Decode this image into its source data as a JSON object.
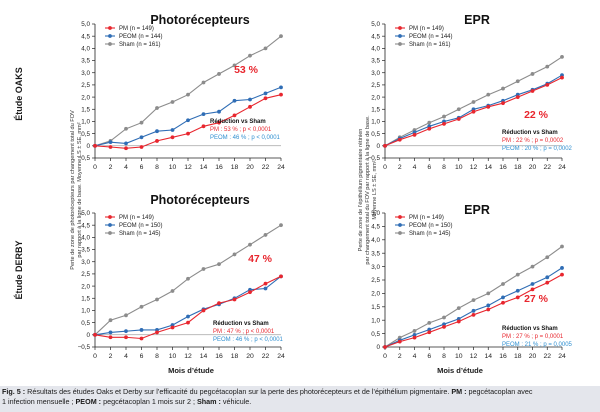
{
  "colors": {
    "PM": "#e8262e",
    "PEOM": "#2f6db5",
    "Sham": "#8c8c8c",
    "pct_red": "#e8262e",
    "pct_blue": "#2f8fd0",
    "caption_bg": "#e4e6ec"
  },
  "row_labels": {
    "oaks": "Étude OAKS",
    "derby": "Étude DERBY"
  },
  "left_ylabel": [
    "Perte de zone de photorécepteurs par changement total du FOV",
    "par rapport à la ligne de base. Moyenne LS ± SE, mm²"
  ],
  "right_ylabel": [
    "Perte de zone de l’épithélium pigmentaire rétinien",
    "par changement total du FOV par rapport à la ligne de base.",
    "Moyenne LS ± SE, mm²"
  ],
  "xlabel": "Mois d’étude",
  "caption": {
    "fig": "Fig. 5 :",
    "text1": " Résultats des études Oaks et Derby sur l’efficacité du pegcétacoplan sur la perte des photorécepteurs et de l’épithélium pigmentaire. ",
    "pm_label": "PM :",
    "text2": " pegcétacoplan avec",
    "text3": "1 infection mensuelle ; ",
    "peom_label": "PEOM :",
    "text4": " pegcétacoplan 1 mois sur 2 ; ",
    "sham_label": "Sham :",
    "text5": " véhicule."
  },
  "chart_data": [
    {
      "type": "line",
      "title": "Photorécepteurs",
      "study": "OAKS",
      "x": [
        0,
        2,
        4,
        6,
        8,
        10,
        12,
        14,
        16,
        18,
        20,
        22,
        24
      ],
      "xticks": [
        0,
        2,
        4,
        6,
        8,
        10,
        12,
        14,
        16,
        18,
        20,
        22,
        24
      ],
      "ylim": [
        -0.5,
        5.0
      ],
      "yticks": [
        "−0,5",
        "0",
        "0,5",
        "1,0",
        "1,5",
        "2,0",
        "2,5",
        "3,0",
        "3,5",
        "4,0",
        "4,5",
        "5,0"
      ],
      "series": [
        {
          "name": "PM (n = 149)",
          "key": "PM",
          "values": [
            0,
            -0.05,
            -0.1,
            -0.05,
            0.2,
            0.35,
            0.5,
            0.8,
            0.95,
            1.25,
            1.6,
            1.95,
            2.1
          ]
        },
        {
          "name": "PEOM (n = 144)",
          "key": "PEOM",
          "values": [
            0,
            0.15,
            0.1,
            0.35,
            0.6,
            0.65,
            1.05,
            1.3,
            1.4,
            1.85,
            1.9,
            2.15,
            2.4
          ]
        },
        {
          "name": "Sham (n = 161)",
          "key": "Sham",
          "values": [
            0,
            0.2,
            0.7,
            0.95,
            1.55,
            1.8,
            2.1,
            2.6,
            2.95,
            3.3,
            3.7,
            4.0,
            4.5
          ]
        }
      ],
      "big_pct": "53 %",
      "reduction": {
        "title": "Réduction vs Sham",
        "pm": "PM : 53 % ; p < 0,0001",
        "peom": "PEOM : 46 % ; p < 0,0001"
      }
    },
    {
      "type": "line",
      "title": "EPR",
      "study": "OAKS",
      "x": [
        0,
        2,
        4,
        6,
        8,
        10,
        12,
        14,
        16,
        18,
        20,
        22,
        24
      ],
      "xticks": [
        0,
        2,
        4,
        6,
        8,
        10,
        12,
        14,
        16,
        18,
        20,
        22,
        24
      ],
      "ylim": [
        -0.5,
        5.0
      ],
      "yticks": [
        "−0,5",
        "0",
        "0,5",
        "1,0",
        "1,5",
        "2,0",
        "2,5",
        "3,0",
        "3,5",
        "4,0",
        "4,5",
        "5,0"
      ],
      "series": [
        {
          "name": "PM (n = 149)",
          "key": "PM",
          "values": [
            0,
            0.25,
            0.45,
            0.7,
            0.9,
            1.1,
            1.4,
            1.6,
            1.75,
            2.0,
            2.25,
            2.5,
            2.8
          ]
        },
        {
          "name": "PEOM (n = 144)",
          "key": "PEOM",
          "values": [
            0,
            0.3,
            0.55,
            0.8,
            1.0,
            1.15,
            1.5,
            1.65,
            1.85,
            2.1,
            2.3,
            2.55,
            2.9
          ]
        },
        {
          "name": "Sham (n = 161)",
          "key": "Sham",
          "values": [
            0,
            0.35,
            0.65,
            0.95,
            1.2,
            1.5,
            1.8,
            2.1,
            2.35,
            2.65,
            2.95,
            3.25,
            3.65
          ]
        }
      ],
      "big_pct": "22 %",
      "reduction": {
        "title": "Réduction vs Sham",
        "pm": "PM : 22 % ; p = 0,0002",
        "peom": "PEOM : 20 % ; p = 0,0002"
      }
    },
    {
      "type": "line",
      "title": "Photorécepteurs",
      "study": "DERBY",
      "x": [
        0,
        2,
        4,
        6,
        8,
        10,
        12,
        14,
        16,
        18,
        20,
        22,
        24
      ],
      "xticks": [
        0,
        2,
        4,
        6,
        8,
        10,
        12,
        14,
        16,
        18,
        20,
        22,
        24
      ],
      "ylim": [
        -0.5,
        5.0
      ],
      "yticks": [
        "−0,5",
        "0",
        "0,5",
        "1,0",
        "1,5",
        "2,0",
        "2,5",
        "3,0",
        "3,5",
        "4,0",
        "4,5",
        "5,0"
      ],
      "series": [
        {
          "name": "PM (n = 149)",
          "key": "PM",
          "values": [
            0,
            -0.1,
            -0.1,
            -0.15,
            0.1,
            0.3,
            0.5,
            1.0,
            1.3,
            1.45,
            1.75,
            2.1,
            2.4
          ]
        },
        {
          "name": "PEOM (n = 150)",
          "key": "PEOM",
          "values": [
            0,
            0.1,
            0.15,
            0.2,
            0.2,
            0.4,
            0.75,
            1.05,
            1.25,
            1.5,
            1.85,
            1.9,
            2.4
          ]
        },
        {
          "name": "Sham (n = 145)",
          "key": "Sham",
          "values": [
            0,
            0.6,
            0.8,
            1.15,
            1.45,
            1.8,
            2.3,
            2.7,
            2.9,
            3.3,
            3.7,
            4.1,
            4.5
          ]
        }
      ],
      "big_pct": "47 %",
      "reduction": {
        "title": "Réduction vs Sham",
        "pm": "PM : 47 % ; p < 0,0001",
        "peom": "PEOM : 46 % ; p < 0,0001"
      }
    },
    {
      "type": "line",
      "title": "EPR",
      "study": "DERBY",
      "x": [
        0,
        2,
        4,
        6,
        8,
        10,
        12,
        14,
        16,
        18,
        20,
        22,
        24
      ],
      "xticks": [
        0,
        2,
        4,
        6,
        8,
        10,
        12,
        14,
        16,
        18,
        20,
        22,
        24
      ],
      "ylim": [
        0,
        5.0
      ],
      "yticks": [
        "0",
        "0,5",
        "1,0",
        "1,5",
        "2,0",
        "2,5",
        "3,0",
        "3,5",
        "4,0",
        "4,5",
        "5,0"
      ],
      "series": [
        {
          "name": "PM (n = 149)",
          "key": "PM",
          "values": [
            0,
            0.2,
            0.35,
            0.55,
            0.75,
            0.95,
            1.2,
            1.4,
            1.65,
            1.85,
            2.15,
            2.4,
            2.7
          ]
        },
        {
          "name": "PEOM (n = 150)",
          "key": "PEOM",
          "values": [
            0,
            0.25,
            0.45,
            0.65,
            0.85,
            1.05,
            1.35,
            1.55,
            1.85,
            2.1,
            2.35,
            2.6,
            2.95
          ]
        },
        {
          "name": "Sham (n = 145)",
          "key": "Sham",
          "values": [
            0,
            0.35,
            0.6,
            0.9,
            1.1,
            1.45,
            1.75,
            2.0,
            2.35,
            2.7,
            3.0,
            3.35,
            3.75
          ]
        }
      ],
      "big_pct": "27 %",
      "reduction": {
        "title": "Réduction vs Sham",
        "pm": "PM : 27 % ; p = 0,0001",
        "peom": "PEOM : 21 % ; p = 0,0005"
      }
    }
  ]
}
